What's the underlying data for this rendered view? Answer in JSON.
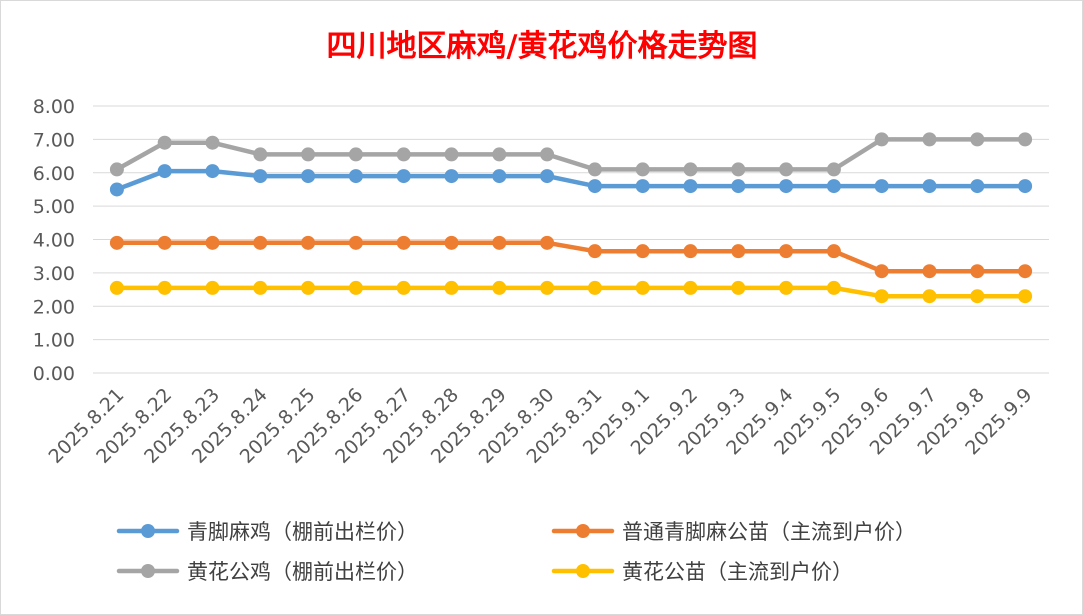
{
  "chart_data": {
    "type": "line",
    "title": "四川地区麻鸡/黄花鸡价格走势图",
    "xlabel": "",
    "ylabel": "",
    "ylim": [
      0,
      8
    ],
    "yticks": [
      "0.00",
      "1.00",
      "2.00",
      "3.00",
      "4.00",
      "5.00",
      "6.00",
      "7.00",
      "8.00"
    ],
    "grid": true,
    "legend_position": "bottom",
    "categories": [
      "2025.8.21",
      "2025.8.22",
      "2025.8.23",
      "2025.8.24",
      "2025.8.25",
      "2025.8.26",
      "2025.8.27",
      "2025.8.28",
      "2025.8.29",
      "2025.8.30",
      "2025.8.31",
      "2025.9.1",
      "2025.9.2",
      "2025.9.3",
      "2025.9.4",
      "2025.9.5",
      "2025.9.6",
      "2025.9.7",
      "2025.9.8",
      "2025.9.9"
    ],
    "series": [
      {
        "name": "青脚麻鸡（棚前出栏价）",
        "color": "#5b9bd5",
        "values": [
          5.5,
          6.05,
          6.05,
          5.9,
          5.9,
          5.9,
          5.9,
          5.9,
          5.9,
          5.9,
          5.6,
          5.6,
          5.6,
          5.6,
          5.6,
          5.6,
          5.6,
          5.6,
          5.6,
          5.6
        ]
      },
      {
        "name": "普通青脚麻公苗（主流到户价）",
        "color": "#ed7d31",
        "values": [
          3.9,
          3.9,
          3.9,
          3.9,
          3.9,
          3.9,
          3.9,
          3.9,
          3.9,
          3.9,
          3.65,
          3.65,
          3.65,
          3.65,
          3.65,
          3.65,
          3.05,
          3.05,
          3.05,
          3.05
        ]
      },
      {
        "name": "黄花公鸡（棚前出栏价）",
        "color": "#a5a5a5",
        "values": [
          6.1,
          6.9,
          6.9,
          6.55,
          6.55,
          6.55,
          6.55,
          6.55,
          6.55,
          6.55,
          6.1,
          6.1,
          6.1,
          6.1,
          6.1,
          6.1,
          7.0,
          7.0,
          7.0,
          7.0
        ]
      },
      {
        "name": "黄花公苗（主流到户价）",
        "color": "#ffc000",
        "values": [
          2.55,
          2.55,
          2.55,
          2.55,
          2.55,
          2.55,
          2.55,
          2.55,
          2.55,
          2.55,
          2.55,
          2.55,
          2.55,
          2.55,
          2.55,
          2.55,
          2.3,
          2.3,
          2.3,
          2.3
        ]
      }
    ]
  }
}
